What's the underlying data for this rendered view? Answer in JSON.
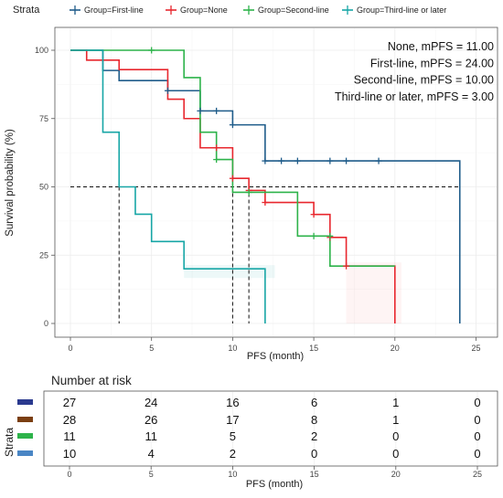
{
  "chart_data": [
    {
      "type": "line",
      "subtype": "kaplan-meier",
      "legend": {
        "title": "Strata",
        "placement": "top",
        "entries": [
          "Group=First-line",
          "Group=None",
          "Group=Second-line",
          "Group=Third-line or later"
        ]
      },
      "xlabel": "PFS (month)",
      "ylabel": "Survival probability (%)",
      "xlim": [
        0,
        25
      ],
      "ylim": [
        0,
        100
      ],
      "xticks": [
        0,
        5,
        10,
        15,
        20,
        25
      ],
      "yticks": [
        0,
        25,
        50,
        75,
        100
      ],
      "grid": true,
      "median_line": 50,
      "annotations": [
        "None, mPFS = 11.00",
        "First-line,  mPFS = 24.00",
        "Second-line, mPFS = 10.00",
        "Third-line or later, mPFS = 3.00"
      ],
      "series": [
        {
          "name": "Group=First-line",
          "color": "#1F5C8A",
          "steps": [
            [
              0,
              100
            ],
            [
              2,
              92.6
            ],
            [
              3,
              88.9
            ],
            [
              6,
              85.2
            ],
            [
              8,
              77.8
            ],
            [
              10,
              72.7
            ],
            [
              11,
              72.7
            ],
            [
              12,
              66.1
            ],
            [
              12,
              59.5
            ],
            [
              24,
              59.5
            ],
            [
              24,
              0
            ]
          ],
          "censored": [
            [
              6,
              85.2
            ],
            [
              8,
              77.8
            ],
            [
              9,
              77.8
            ],
            [
              10,
              72.7
            ],
            [
              12,
              59.5
            ],
            [
              13,
              59.5
            ],
            [
              14,
              59.5
            ],
            [
              16,
              59.5
            ],
            [
              17,
              59.5
            ],
            [
              19,
              59.5
            ]
          ],
          "median": 24
        },
        {
          "name": "Group=None",
          "color": "#E8272E",
          "steps": [
            [
              0,
              100
            ],
            [
              1,
              96.4
            ],
            [
              3,
              92.9
            ],
            [
              6,
              89.3
            ],
            [
              6,
              82.1
            ],
            [
              7,
              75
            ],
            [
              8,
              64.3
            ],
            [
              10,
              53.1
            ],
            [
              11,
              48.7
            ],
            [
              12,
              44.3
            ],
            [
              15,
              39.9
            ],
            [
              16,
              35.4
            ],
            [
              16,
              31.5
            ],
            [
              17,
              21
            ],
            [
              20,
              21
            ],
            [
              20,
              0
            ]
          ],
          "censored": [
            [
              9,
              64.3
            ],
            [
              10,
              53.1
            ],
            [
              11,
              48.7
            ],
            [
              12,
              44.3
            ],
            [
              15,
              39.9
            ],
            [
              16,
              31.5
            ],
            [
              17,
              21
            ]
          ],
          "median": 11
        },
        {
          "name": "Group=Second-line",
          "color": "#2DB34A",
          "steps": [
            [
              0,
              100
            ],
            [
              7,
              100
            ],
            [
              7,
              90
            ],
            [
              8,
              80
            ],
            [
              8,
              70
            ],
            [
              9,
              60
            ],
            [
              10,
              48
            ],
            [
              14,
              48
            ],
            [
              14,
              32
            ],
            [
              16,
              32
            ],
            [
              16,
              21
            ],
            [
              20,
              21
            ]
          ],
          "censored": [
            [
              5,
              100
            ],
            [
              9,
              60
            ],
            [
              11,
              48
            ],
            [
              15,
              32
            ],
            [
              16,
              32
            ]
          ],
          "median": 10
        },
        {
          "name": "Group=Third-line or later",
          "color": "#17A6A6",
          "steps": [
            [
              0,
              100
            ],
            [
              2,
              100
            ],
            [
              2,
              70
            ],
            [
              3,
              50
            ],
            [
              4,
              40
            ],
            [
              5,
              30
            ],
            [
              7,
              20
            ],
            [
              12,
              20
            ],
            [
              12,
              0
            ]
          ],
          "censored": [],
          "median": 3
        }
      ]
    },
    {
      "type": "table",
      "title": "Number at risk",
      "ylabel": "Strata",
      "xlabel": "PFS (month)",
      "xticks": [
        0,
        5,
        10,
        15,
        20,
        25
      ],
      "row_colors": [
        "#2B3A8F",
        "#7B3F12",
        "#2DB34A",
        "#4A86C5"
      ],
      "rows": [
        [
          27,
          24,
          16,
          6,
          1,
          0
        ],
        [
          28,
          26,
          17,
          8,
          1,
          0
        ],
        [
          11,
          11,
          5,
          2,
          0,
          0
        ],
        [
          10,
          4,
          2,
          0,
          0,
          0
        ]
      ]
    }
  ]
}
